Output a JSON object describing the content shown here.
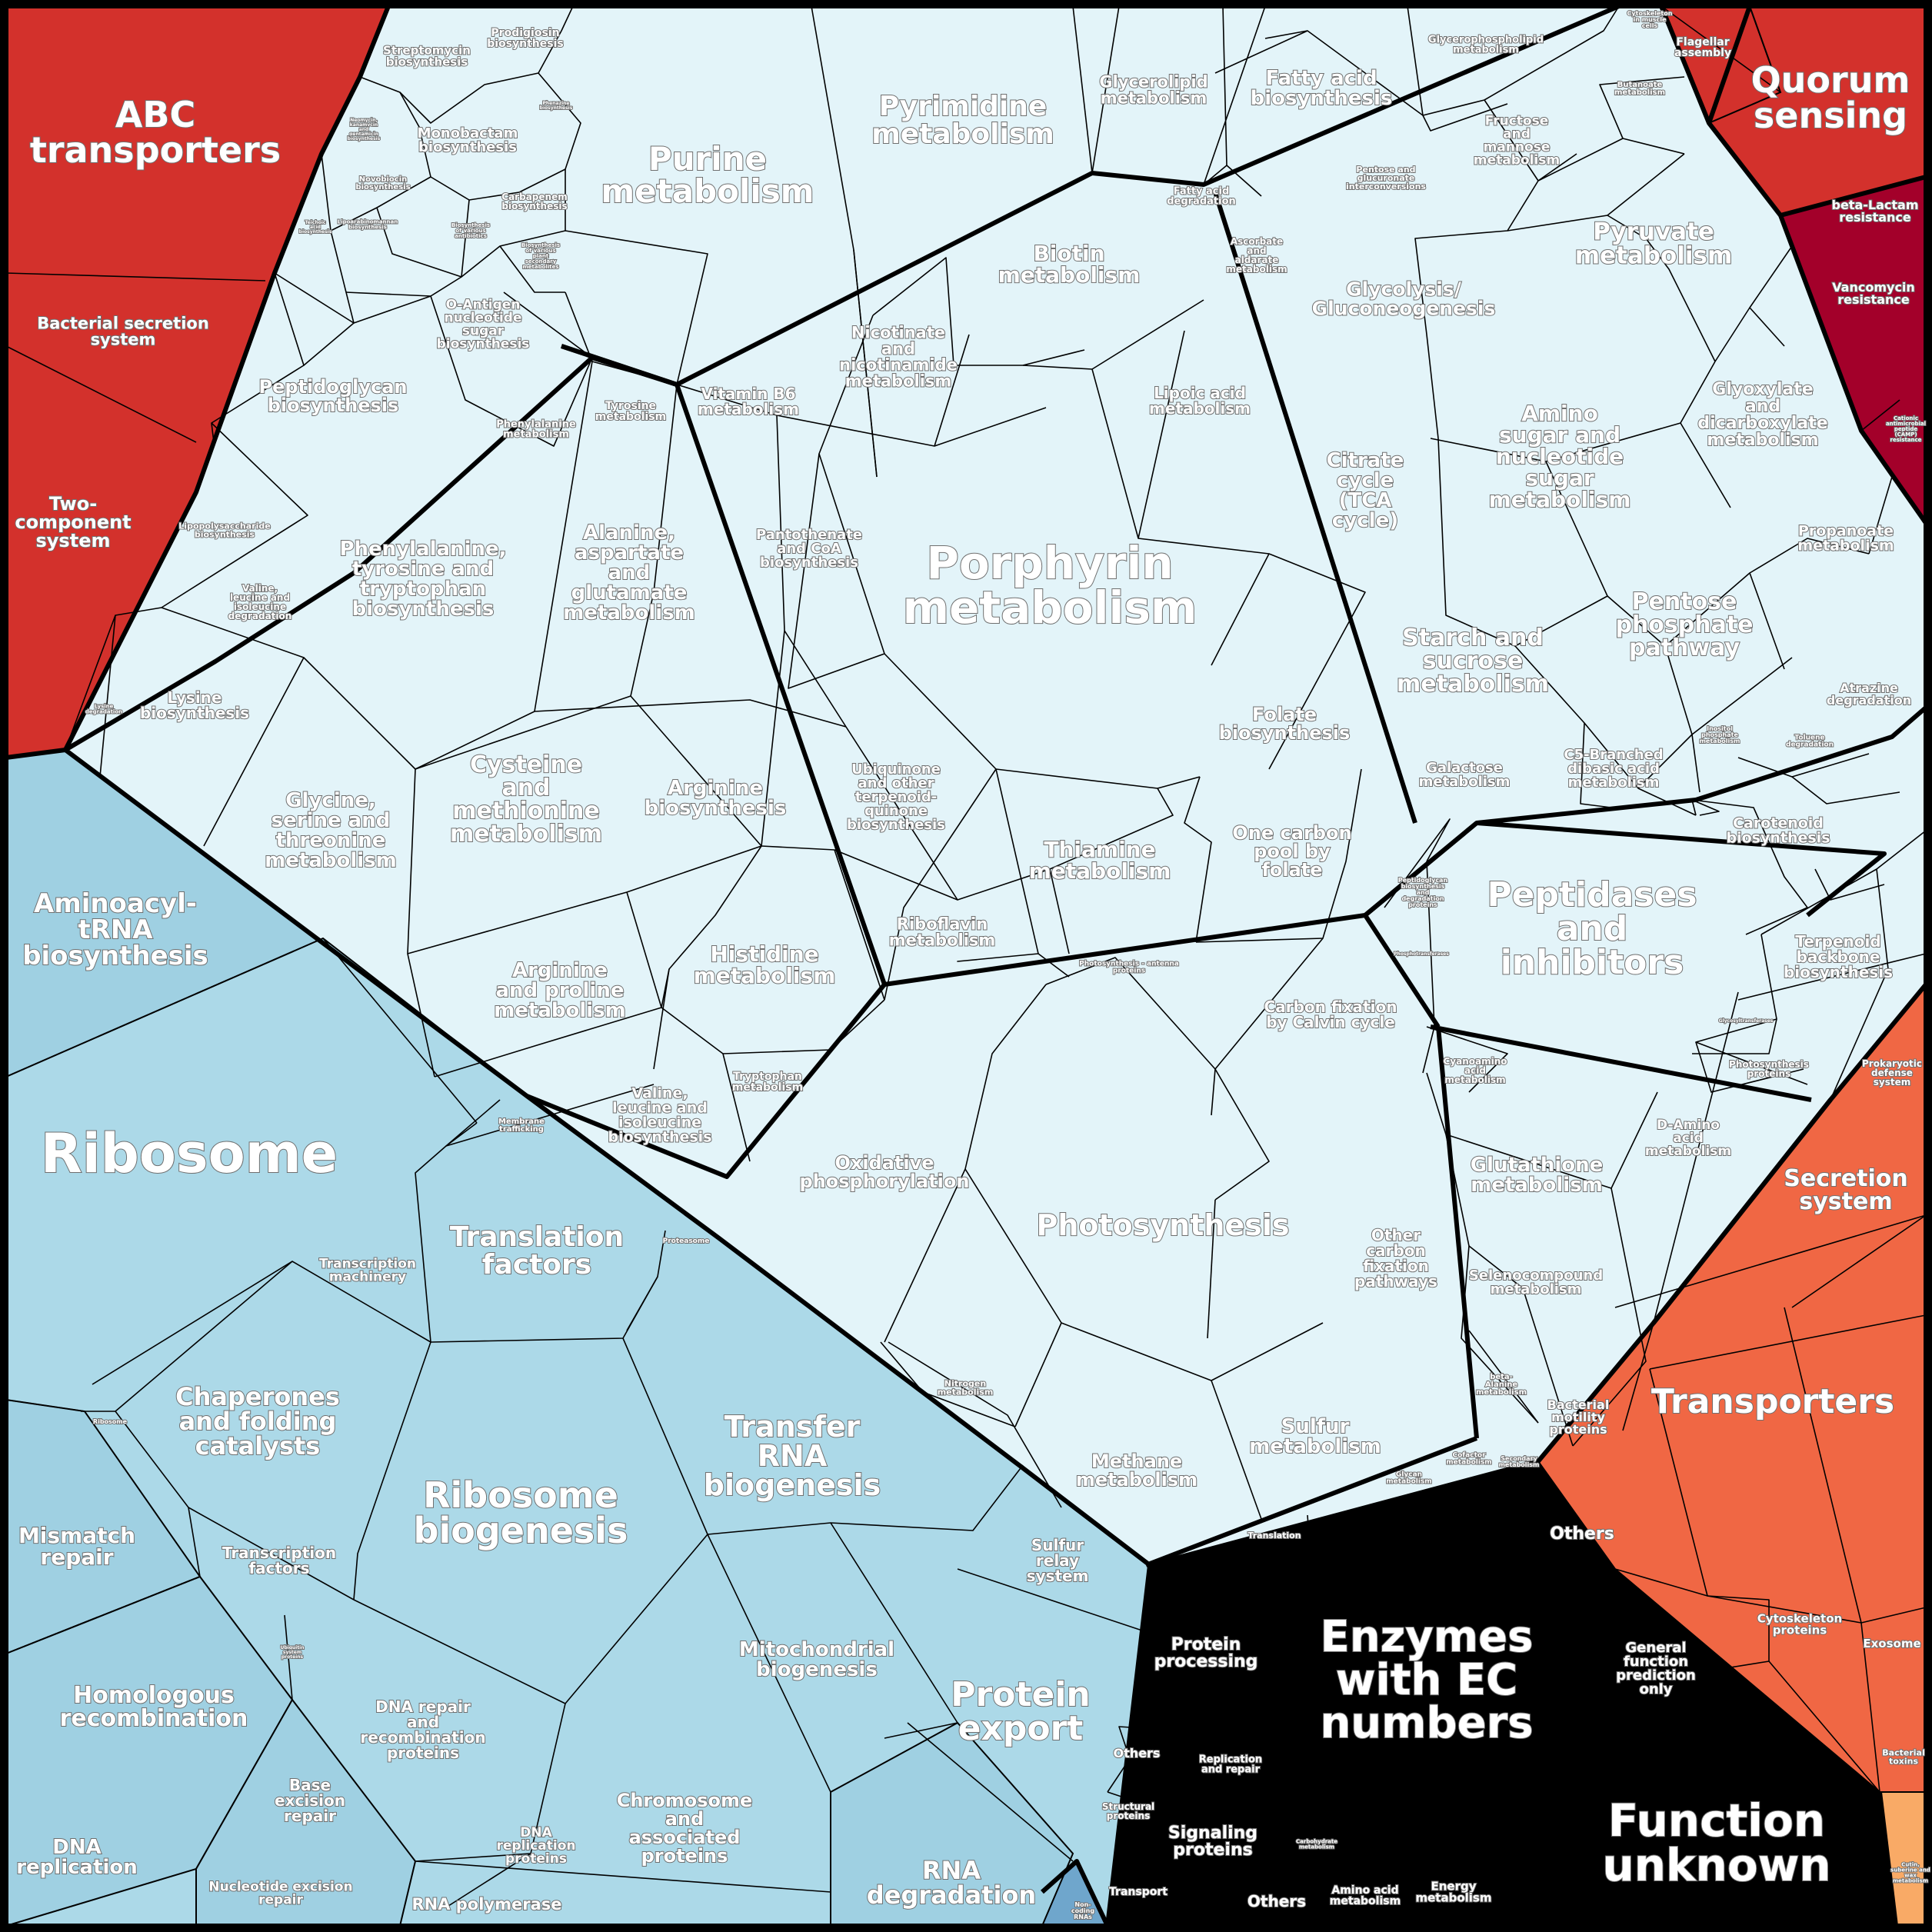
{
  "colors": {
    "metabolism_fill": "#e3f4f9",
    "info_fill": "#acd9e8",
    "info_dark": "#9fd0e2",
    "cell_red": "#d3312c",
    "cell_darkred": "#a3002a",
    "cell_orange": "#f06744",
    "cell_lightorange": "#f9aa66",
    "cell_blue": "#6fa6cc",
    "border": "#000000"
  },
  "labels": {
    "abc": "ABC\ntransporters",
    "bsec": "Bacterial secretion\nsystem",
    "twocomp": "Two-\ncomponent\nsystem",
    "quorum": "Quorum\nsensing",
    "flag": "Flagellar\nassembly",
    "cytoseg": "Cytoskeleton\nin muscle\ncells",
    "betalac": "beta-Lactam\nresistance",
    "vanco": "Vancomycin\nresistance",
    "camp": "Cationic\nantimicrobial\npeptide\n(CAMP)\nresistance",
    "purine": "Purine\nmetabolism",
    "pyrim": "Pyrimidine\nmetabolism",
    "strep": "Streptomycin\nbiosynthesis",
    "prodig": "Prodigiosin\nbiosynthesis",
    "monob": "Monobactam\nbiosynthesis",
    "novob": "Novobiocin\nbiosynthesis",
    "carbap": "Carbapenem\nbiosynthesis",
    "phenaz": "Phenazine\nbiosynthesis",
    "neomyc": "Neomycin,\nkanamycin\nand\ngentamicin\nbiosynthesis",
    "biosyn_ant": "Biosynthesis\nof various\nantibiotics",
    "biosyn_sec": "Biosynthesis\nof various\nplant\nsecondary\nmetabolites",
    "teichoic": "Teichoic\nacid\nbiosynthesis",
    "lipoarab": "Lipoarabinomannan\nbiosynthesis",
    "oantigen": "O-Antigen\nnucleotide\nsugar\nbiosynthesis",
    "peptidogly": "Peptidoglycan\nbiosynthesis",
    "lps": "Lipopolysaccharide\nbiosynthesis",
    "vli_deg": "Valine,\nleucine and\nisoleucine\ndegradation",
    "lys_bio": "Lysine\nbiosynthesis",
    "lys_deg": "Lysine\ndegradation",
    "glycine": "Glycine,\nserine and\nthreonine\nmetabolism",
    "phe_tyr": "Phenylalanine,\ntyrosine and\ntryptophan\nbiosynthesis",
    "phe_met": "Phenylalanine\nmetabolism",
    "tyr_met": "Tyrosine\nmetabolism",
    "alanine": "Alanine,\naspartate\nand\nglutamate\nmetabolism",
    "cysteine": "Cysteine\nand\nmethionine\nmetabolism",
    "arg_bio": "Arginine\nbiosynthesis",
    "arg_pro": "Arginine\nand proline\nmetabolism",
    "histidine": "Histidine\nmetabolism",
    "vli_bio": "Valine,\nleucine and\nisoleucine\nbiosynthesis",
    "trp": "Tryptophan\nmetabolism",
    "glycerolipid": "Glycerolipid\nmetabolism",
    "fattyacid_bio": "Fatty acid\nbiosynthesis",
    "fattyacid_deg": "Fatty acid\ndegradation",
    "glycerophos": "Glycerophospholipid\nmetabolism",
    "butanoate": "Butanoate\nmetabolism",
    "biotin": "Biotin\nmetabolism",
    "nicotinate": "Nicotinate\nand\nnicotinamide\nmetabolism",
    "vitb6": "Vitamin B6\nmetabolism",
    "pantothenate": "Pantothenate\nand CoA\nbiosynthesis",
    "porphyrin": "Porphyrin\nmetabolism",
    "lipoic": "Lipoic acid\nmetabolism",
    "folate": "Folate\nbiosynthesis",
    "ubiquinone": "Ubiquinone\nand other\nterpenoid-\nquinone\nbiosynthesis",
    "thiamine": "Thiamine\nmetabolism",
    "onecarbon": "One carbon\npool by\nfolate",
    "riboflavin": "Riboflavin\nmetabolism",
    "pentose_gluc": "Pentose and\nglucuronate\ninterconversions",
    "fructose": "Fructose\nand\nmannose\nmetabolism",
    "ascorbate": "Ascorbate\nand\naldarate\nmetabolism",
    "glycolysis": "Glycolysis/\nGluconeogenesis",
    "pyruvate": "Pyruvate\nmetabolism",
    "glyoxylate": "Glyoxylate\nand\ndicarboxylate\nmetabolism",
    "citrate": "Citrate\ncycle\n(TCA\ncycle)",
    "aminosugar": "Amino\nsugar and\nnucleotide\nsugar\nmetabolism",
    "propanoate": "Propanoate\nmetabolism",
    "starch": "Starch and\nsucrose\nmetabolism",
    "pentose_phos": "Pentose\nphosphate\npathway",
    "galactose": "Galactose\nmetabolism",
    "c5": "C5-Branched\ndibasic acid\nmetabolism",
    "inositol": "Inositol\nphosphate\nmetabolism",
    "atrazine": "Atrazine\ndegradation",
    "toluene": "Toluene\ndegradation",
    "carotenoid": "Carotenoid\nbiosynthesis",
    "terpenoid": "Terpenoid\nbackbone\nbiosynthesis",
    "peptidases": "Peptidases\nand\ninhibitors",
    "pepglycan_bio": "Peptidoglycan\nbiosynthesis\nand\ndegradation\nproteins",
    "phosphotrans": "Phosphotransferases",
    "glycosyltrans": "Glycosyltransferases",
    "photosyn_prot": "Photosynthesis\nproteins",
    "photosyn_ant": "Photosynthesis - antenna\nproteins",
    "carbonfix": "Carbon fixation\nby Calvin cycle",
    "oxphos": "Oxidative\nphosphorylation",
    "photosynthesis": "Photosynthesis",
    "otherfix": "Other\ncarbon\nfixation\npathways",
    "cyanoamino": "Cyanoamino\nacid\nmetabolism",
    "glutathione": "Glutathione\nmetabolism",
    "damino": "D-Amino\nacid\nmetabolism",
    "seleno": "Selenocompound\nmetabolism",
    "betaalanine": "beta-\nAlanine\nmetabolism",
    "nitrogen": "Nitrogen\nmetabolism",
    "methane": "Methane\nmetabolism",
    "sulfur": "Sulfur\nmetabolism",
    "glycan": "Glycan\nmetabolism",
    "cofactor": "Cofactor\nmetabolism",
    "secondary": "Secondary\nmetabolism",
    "aminoacyl": "Aminoacyl-\ntRNA\nbiosynthesis",
    "ribosome": "Ribosome",
    "membrane": "Membrane\ntrafficking",
    "proteasome": "Proteasome",
    "translation": "Translation\nfactors",
    "transcmach": "Transcription\nmachinery",
    "chaperones": "Chaperones\nand folding\ncatalysts",
    "ribosome_small": "Ribosome",
    "ribobiogen": "Ribosome\nbiogenesis",
    "trna_biogen": "Transfer\nRNA\nbiogenesis",
    "mismatch": "Mismatch\nrepair",
    "transc_factors": "Transcription\nfactors",
    "homologous": "Homologous\nrecombination",
    "dnarepair": "DNA repair\nand\nrecombination\nproteins",
    "mito": "Mitochondrial\nbiogenesis",
    "ubiquitin": "Ubiquitin\nsystem\nproteins",
    "baseexc": "Base\nexcision\nrepair",
    "dnareplprot": "DNA\nreplication\nproteins",
    "chromosome": "Chromosome\nand\nassociated\nproteins",
    "dnarepl": "DNA\nreplication",
    "nucexc": "Nucleotide excision\nrepair",
    "rnapol": "RNA polymerase",
    "sulfurrelay": "Sulfur\nrelay\nsystem",
    "proteinexp": "Protein\nexport",
    "rnadeg": "RNA\ndegradation",
    "noncoding": "Non-\ncoding\nRNAs",
    "proc": "Protein\nprocessing",
    "translation_small": "Translation",
    "others1": "Others",
    "others2": "Others",
    "others3": "Others",
    "enzymes": "Enzymes\nwith EC\nnumbers",
    "general": "General\nfunction\nprediction\nonly",
    "unknown": "Function\nunknown",
    "replrep": "Replication\nand repair",
    "structural": "Structural\nproteins",
    "signaling": "Signaling\nproteins",
    "transport_small": "Transport",
    "carbohydrate": "Carbohydrate\nmetabolism",
    "aminoacid": "Amino acid\nmetabolism",
    "energy": "Energy\nmetabolism",
    "prokdef": "Prokaryotic\ndefense\nsystem",
    "secretion": "Secretion\nsystem",
    "transporters": "Transporters",
    "bactmot": "Bacterial\nmotility\nproteins",
    "cytosk": "Cytoskeleton\nproteins",
    "exosome": "Exosome",
    "bacttox": "Bacterial\ntoxins",
    "cutin": "Cutin,\nsuberine and\nwax\nmetabolism"
  }
}
